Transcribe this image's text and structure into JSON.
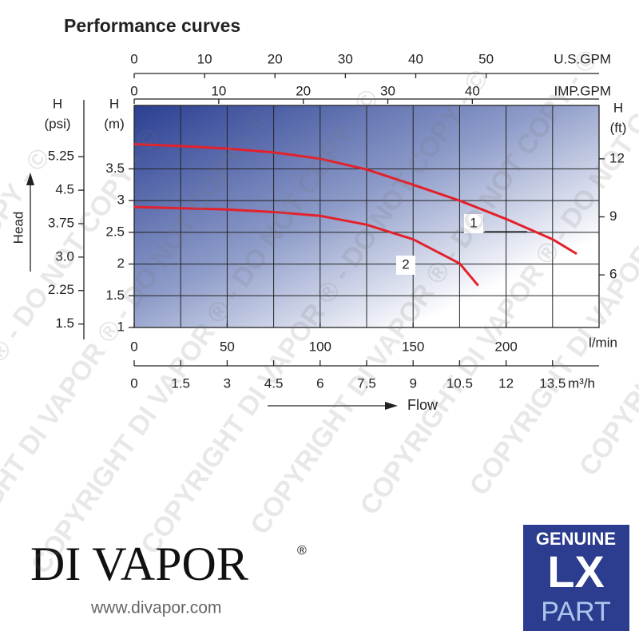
{
  "chart_data": {
    "type": "line",
    "title": "Performance curves",
    "x_label": "l/min",
    "xlim": [
      0,
      250
    ],
    "xticks": [
      0,
      50,
      100,
      150,
      200
    ],
    "y_label": [
      "H",
      "(m)"
    ],
    "ylim": [
      1,
      4.5
    ],
    "yticks": [
      1,
      1.5,
      2,
      2.5,
      3,
      3.5
    ],
    "grid": true,
    "series": [
      {
        "name": "1",
        "color": "#e3212b",
        "x": [
          0,
          25,
          50,
          75,
          100,
          125,
          150,
          175,
          200,
          225,
          238
        ],
        "values": [
          3.89,
          3.86,
          3.82,
          3.76,
          3.66,
          3.49,
          3.25,
          3.0,
          2.71,
          2.39,
          2.16
        ]
      },
      {
        "name": "2",
        "color": "#e3212b",
        "x": [
          0,
          50,
          75,
          100,
          125,
          150,
          175,
          185
        ],
        "values": [
          2.9,
          2.86,
          2.82,
          2.76,
          2.62,
          2.39,
          2.01,
          1.66
        ]
      }
    ],
    "x_m3h": {
      "label": "m³/h",
      "lim": [
        0,
        15
      ],
      "ticks": [
        0,
        1.5,
        3,
        4.5,
        6,
        7.5,
        9,
        10.5,
        12,
        13.5
      ]
    },
    "x_usgpm": {
      "label": "U.S.GPM",
      "lim": [
        0,
        66.04
      ],
      "ticks": [
        0,
        10,
        20,
        30,
        40,
        50
      ]
    },
    "x_impgpm": {
      "label": "IMP.GPM",
      "lim": [
        0,
        54.99
      ],
      "ticks": [
        0,
        10,
        20,
        30,
        40
      ]
    },
    "y_psi": {
      "label": [
        "H",
        "(psi)"
      ],
      "lim": [
        1.422,
        6.4
      ],
      "ticks": [
        1.5,
        2.25,
        {
          "value": 3,
          "label": "3.0"
        },
        3.75,
        4.5,
        5.25
      ]
    },
    "y_ft": {
      "label": [
        "H",
        "(ft)"
      ],
      "lim": [
        3.281,
        14.76
      ],
      "ticks": [
        6,
        9,
        12
      ]
    },
    "head_label": "Head",
    "flow_label": "Flow"
  },
  "brand": "DI VAPOR",
  "brand_mark": "®",
  "website": "www.divapor.com",
  "badge": {
    "top": "GENUINE",
    "middle": "LX",
    "bottom": "PART"
  },
  "watermark": "COPYRIGHT DI VAPOR ® - DO NOT COPY - ©"
}
